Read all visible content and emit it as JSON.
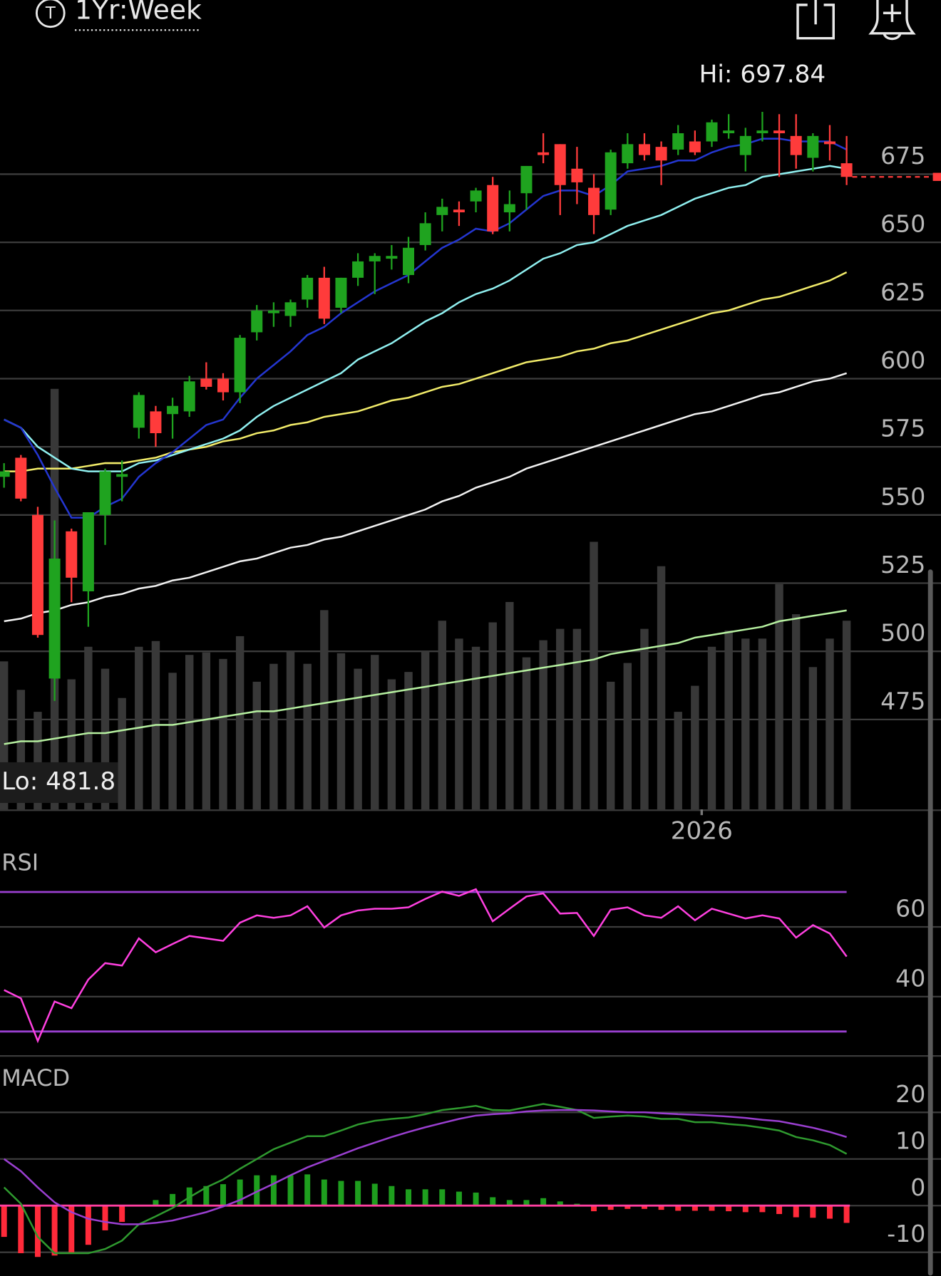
{
  "header": {
    "icon": "T",
    "range": "1Yr:Week"
  },
  "chart_data": [
    {
      "type": "candlestick",
      "high_label": "Hi: 697.84",
      "low_label": "Lo: 481.8",
      "up_color": "#1fa31f",
      "down_color": "#ff3b3b",
      "volume_color": "#383838",
      "open": [
        564,
        571,
        550,
        490,
        544,
        522,
        550,
        564,
        582,
        588,
        587,
        588,
        600,
        600,
        595,
        617,
        624,
        623,
        629,
        637,
        626,
        637,
        643,
        644,
        638,
        649,
        660,
        662,
        665,
        671,
        661,
        668,
        683,
        686,
        677,
        670,
        662,
        679,
        686,
        685,
        684,
        687,
        687,
        690,
        682,
        690,
        691,
        689,
        681,
        687,
        679
      ],
      "high": [
        569,
        572,
        553,
        548,
        545,
        551,
        567,
        570,
        595,
        590,
        593,
        601,
        606,
        602,
        616,
        627,
        628,
        629,
        638,
        641,
        637,
        646,
        646,
        649,
        652,
        661,
        666,
        665,
        670,
        674,
        669,
        678,
        690,
        686,
        685,
        675,
        684,
        690,
        690,
        687,
        693,
        691,
        695,
        697,
        692,
        697.84,
        697,
        697,
        690,
        693,
        689
      ],
      "low": [
        560,
        555,
        505,
        481.8,
        518,
        509,
        539,
        555,
        578,
        575,
        578,
        586,
        596,
        592,
        591,
        614,
        619,
        619,
        626,
        620,
        624,
        634,
        631,
        640,
        635,
        647,
        654,
        656,
        661,
        653,
        654,
        662,
        679,
        660,
        664,
        653,
        660,
        677,
        680,
        671,
        682,
        682,
        685,
        688,
        676,
        687,
        674,
        677,
        676,
        680,
        671
      ],
      "close": [
        566,
        556,
        506,
        534,
        527,
        551,
        566,
        565,
        594,
        580,
        590,
        599,
        597,
        595,
        615,
        625,
        625,
        628,
        637,
        622,
        637,
        643,
        645,
        645,
        648,
        657,
        663,
        661,
        669,
        654,
        664,
        678,
        682,
        671,
        672,
        660,
        683,
        686,
        682,
        680,
        690,
        683,
        694,
        691,
        689,
        691,
        690,
        682,
        689,
        686,
        674
      ],
      "volume": [
        182,
        147,
        120,
        517,
        160,
        200,
        173,
        137,
        200,
        207,
        168,
        190,
        193,
        185,
        213,
        157,
        179,
        195,
        179,
        245,
        192,
        173,
        190,
        160,
        169,
        195,
        232,
        210,
        200,
        230,
        255,
        187,
        208,
        222,
        222,
        329,
        157,
        180,
        222,
        299,
        120,
        152,
        200,
        220,
        210,
        210,
        277,
        240,
        175,
        210,
        232
      ],
      "volume_lim": [
        0,
        915
      ],
      "series": [
        {
          "color": "#b6f0a0",
          "values": [
            466,
            467,
            467,
            468,
            469,
            470,
            470,
            471,
            472,
            473,
            473,
            474,
            475,
            476,
            477,
            478,
            478,
            479,
            480,
            481,
            482,
            483,
            484,
            485,
            486,
            487,
            488,
            489,
            490,
            491,
            492,
            493,
            494,
            495,
            496,
            497,
            499,
            500,
            501,
            502,
            503,
            505,
            506,
            507,
            508,
            509,
            511,
            512,
            513,
            514,
            515
          ]
        },
        {
          "color": "#f2f2f2",
          "values": [
            511,
            512,
            514,
            515,
            517,
            518,
            520,
            521,
            523,
            524,
            526,
            527,
            529,
            531,
            533,
            534,
            536,
            538,
            539,
            541,
            542,
            544,
            546,
            548,
            550,
            552,
            555,
            557,
            560,
            562,
            564,
            567,
            569,
            571,
            573,
            575,
            577,
            579,
            581,
            583,
            585,
            587,
            588,
            590,
            592,
            594,
            595,
            597,
            599,
            600,
            602
          ]
        },
        {
          "color": "#f2ec6a",
          "values": [
            566,
            566,
            567,
            567,
            567,
            568,
            569,
            569,
            570,
            571,
            573,
            574,
            575,
            577,
            578,
            580,
            581,
            583,
            584,
            586,
            587,
            588,
            590,
            592,
            593,
            595,
            597,
            598,
            600,
            602,
            604,
            606,
            607,
            608,
            610,
            611,
            613,
            614,
            616,
            618,
            620,
            622,
            624,
            625,
            627,
            629,
            630,
            632,
            634,
            636,
            639
          ]
        },
        {
          "color": "#90f0f0",
          "values": [
            585,
            582,
            575,
            571,
            567,
            566,
            566,
            566,
            569,
            570,
            572,
            574,
            576,
            578,
            581,
            586,
            590,
            593,
            596,
            599,
            602,
            607,
            610,
            613,
            617,
            621,
            624,
            628,
            631,
            633,
            636,
            640,
            644,
            646,
            649,
            650,
            653,
            656,
            658,
            660,
            663,
            666,
            668,
            670,
            671,
            674,
            675,
            676,
            677,
            678,
            677
          ]
        },
        {
          "color": "#2436d0",
          "values": [
            585,
            582,
            572,
            560,
            549,
            549,
            553,
            556,
            564,
            569,
            573,
            578,
            583,
            585,
            593,
            600,
            605,
            610,
            616,
            619,
            624,
            628,
            632,
            635,
            638,
            643,
            648,
            651,
            655,
            654,
            657,
            662,
            667,
            669,
            669,
            667,
            671,
            676,
            677,
            678,
            680,
            680,
            683,
            685,
            686,
            688,
            688,
            687,
            687,
            687,
            684
          ]
        }
      ],
      "xlim": [
        -0.24,
        55.6
      ],
      "xticks": [
        {
          "value": 41.4,
          "label": "2026"
        }
      ],
      "ylim": [
        442,
        715
      ],
      "yticks": [
        475,
        500,
        525,
        550,
        575,
        600,
        625,
        650,
        675
      ],
      "grid": true
    },
    {
      "type": "line",
      "title": "RSI",
      "series": [
        {
          "color": "#ff40e0",
          "values": [
            41.9,
            39.5,
            27.3,
            38.6,
            36.7,
            44.9,
            49.6,
            48.9,
            56.7,
            52.7,
            55.1,
            57.4,
            56.7,
            56,
            61.2,
            63.3,
            62.6,
            63.3,
            65.9,
            59.8,
            63.3,
            64.7,
            65.2,
            65.2,
            65.6,
            68,
            70.1,
            68.9,
            70.8,
            61.6,
            65.2,
            68.7,
            69.6,
            63.8,
            64,
            57.4,
            64.9,
            65.6,
            63.3,
            62.6,
            65.9,
            61.9,
            65.2,
            63.8,
            62.4,
            63.3,
            62.4,
            56.9,
            60.5,
            58.1,
            51.5
          ]
        }
      ],
      "reference_lines": [
        30,
        70
      ],
      "reference_color": "#9a3fd0",
      "ylim": [
        23,
        82
      ],
      "yticks": [
        40,
        60
      ],
      "grid": true
    },
    {
      "type": "macd",
      "title": "MACD",
      "series": [
        {
          "color": "#2f9a2f",
          "values": [
            3.9,
            0.4,
            -6.7,
            -10.2,
            -10.2,
            -10.2,
            -9.3,
            -7.5,
            -4,
            -2.3,
            -0.5,
            1.8,
            3.9,
            5.6,
            7.9,
            10,
            12.1,
            13.5,
            14.9,
            14.9,
            16.1,
            17.4,
            18.2,
            18.6,
            18.9,
            19.6,
            20.5,
            20.9,
            21.4,
            20.5,
            20.4,
            21.1,
            21.8,
            21.2,
            20.5,
            18.8,
            19.1,
            19.3,
            19.1,
            18.6,
            18.6,
            17.9,
            17.9,
            17.5,
            17.2,
            16.7,
            16.1,
            14.7,
            14,
            13,
            11.1
          ]
        },
        {
          "color": "#9a3fd0",
          "values": [
            10,
            7.4,
            3.9,
            0.7,
            -1.4,
            -2.8,
            -3.5,
            -4,
            -4,
            -3.7,
            -3.2,
            -2.3,
            -1.4,
            -0.2,
            1.2,
            3,
            4.7,
            6.5,
            8.2,
            9.6,
            10.9,
            12.3,
            13.5,
            14.7,
            15.8,
            16.8,
            17.7,
            18.6,
            19.3,
            19.6,
            19.8,
            20.2,
            20.4,
            20.5,
            20.5,
            20.4,
            20.2,
            20,
            20,
            19.8,
            19.6,
            19.5,
            19.3,
            19.1,
            18.8,
            18.4,
            18.1,
            17.4,
            16.7,
            15.8,
            14.7
          ]
        }
      ],
      "histogram": [
        -6.7,
        -10.2,
        -11,
        -10.7,
        -10.2,
        -8.4,
        -5.3,
        -3.5,
        0,
        1.2,
        2.5,
        3.9,
        4.2,
        4.6,
        5.6,
        6.5,
        6.5,
        6.5,
        6.7,
        5.6,
        5.3,
        5.3,
        4.7,
        4.2,
        3.5,
        3.5,
        3.5,
        3,
        2.8,
        1.8,
        1.2,
        1.2,
        1.6,
        0.9,
        0.4,
        -1.2,
        -0.9,
        -0.7,
        -0.7,
        -0.9,
        -1.1,
        -1.1,
        -1.1,
        -1.2,
        -1.4,
        -1.4,
        -1.8,
        -2.5,
        -2.6,
        -2.8,
        -3.7
      ],
      "up_color": "#1e9e1e",
      "down_color": "#ff2a3a",
      "zero_color": "#ff3fa0",
      "ylim": [
        -15,
        30
      ],
      "yticks": [
        -10,
        0,
        10,
        20
      ],
      "grid": true
    }
  ]
}
